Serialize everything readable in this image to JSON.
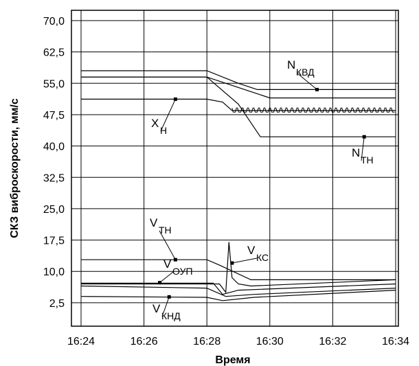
{
  "chart_data": {
    "type": "line",
    "title": "",
    "xlabel": "Время",
    "ylabel": "СКЗ виброскорости, мм/с",
    "x_ticks": [
      "16:24",
      "16:26",
      "16:28",
      "16:30",
      "16:32",
      "16:34"
    ],
    "y_ticks": [
      "2,5",
      "10,0",
      "17,5",
      "25,0",
      "32,5",
      "40,0",
      "47,5",
      "55,0",
      "62,5",
      "70,0"
    ],
    "xlim": [
      "16:24",
      "16:34"
    ],
    "ylim": [
      0,
      70
    ],
    "grid": true,
    "legend": "none",
    "series": [
      {
        "name": "N_КВД",
        "label_main": "N",
        "label_sub": "КВД",
        "color": "#000000",
        "points": [
          [
            "16:24",
            58.0
          ],
          [
            "16:28",
            58.0
          ],
          [
            "16:29",
            55.0
          ],
          [
            "16:29.6",
            53.5
          ],
          [
            "16:34",
            53.5
          ]
        ],
        "marker_at": [
          "16:31.5",
          53.5
        ]
      },
      {
        "name": "Upper flat line",
        "color": "#000000",
        "points": [
          [
            "16:24",
            56.5
          ],
          [
            "16:28",
            56.5
          ],
          [
            "16:30",
            51.5
          ],
          [
            "16:34",
            51.5
          ]
        ]
      },
      {
        "name": "X_Н",
        "label_main": "X",
        "label_sub": "Н",
        "color": "#000000",
        "points": [
          [
            "16:24",
            51.2
          ],
          [
            "16:28",
            51.2
          ],
          [
            "16:28.5",
            50.5
          ],
          [
            "16:28.8",
            48.5
          ],
          [
            "16:34",
            48.5
          ]
        ],
        "marker_at": [
          "16:27",
          51.2
        ]
      },
      {
        "name": "N_ТН",
        "label_main": "N",
        "label_sub": "ТН",
        "color": "#000000",
        "points": [
          [
            "16:24",
            56.5
          ],
          [
            "16:28",
            56.5
          ],
          [
            "16:29",
            50.0
          ],
          [
            "16:29.7",
            42.2
          ],
          [
            "16:34",
            42.2
          ]
        ],
        "marker_at": [
          "16:33",
          42.2
        ]
      },
      {
        "name": "V_ТН",
        "label_main": "V",
        "label_sub": "ТН",
        "color": "#000000",
        "points": [
          [
            "16:24",
            12.8
          ],
          [
            "16:28",
            12.8
          ],
          [
            "16:28.4",
            11.5
          ],
          [
            "16:29.4",
            8.0
          ],
          [
            "16:34",
            8.0
          ]
        ],
        "marker_at": [
          "16:27",
          12.8
        ]
      },
      {
        "name": "V_КС",
        "label_main": "V",
        "label_sub": "КС",
        "color": "#000000",
        "points": [
          [
            "16:24",
            7.0
          ],
          [
            "16:28.4",
            7.0
          ],
          [
            "16:28.6",
            5.0
          ],
          [
            "16:28.7",
            17.0
          ],
          [
            "16:28.8",
            8.5
          ],
          [
            "16:29",
            7.0
          ],
          [
            "16:29.4",
            6.5
          ],
          [
            "16:34",
            8.0
          ]
        ],
        "marker_at": [
          "16:28.8",
          12.0
        ]
      },
      {
        "name": "V_ОУП",
        "label_main": "V",
        "label_sub": "ОУП",
        "color": "#000000",
        "points": [
          [
            "16:24",
            7.2
          ],
          [
            "16:28.2",
            7.2
          ],
          [
            "16:28.5",
            4.5
          ],
          [
            "16:29",
            5.5
          ],
          [
            "16:34",
            7.0
          ]
        ],
        "marker_at": [
          "16:26.5",
          7.3
        ]
      },
      {
        "name": "Lower line",
        "color": "#000000",
        "points": [
          [
            "16:24",
            6.5
          ],
          [
            "16:28",
            6.0
          ],
          [
            "16:28.6",
            4.0
          ],
          [
            "16:29.5",
            4.5
          ],
          [
            "16:34",
            6.0
          ]
        ]
      },
      {
        "name": "V_КНД",
        "label_main": "V",
        "label_sub": "КНД",
        "color": "#000000",
        "points": [
          [
            "16:24",
            4.0
          ],
          [
            "16:28",
            3.8
          ],
          [
            "16:28.5",
            3.0
          ],
          [
            "16:29.5",
            3.8
          ],
          [
            "16:34",
            5.5
          ]
        ],
        "marker_at": [
          "16:26.8",
          3.9
        ]
      }
    ]
  }
}
